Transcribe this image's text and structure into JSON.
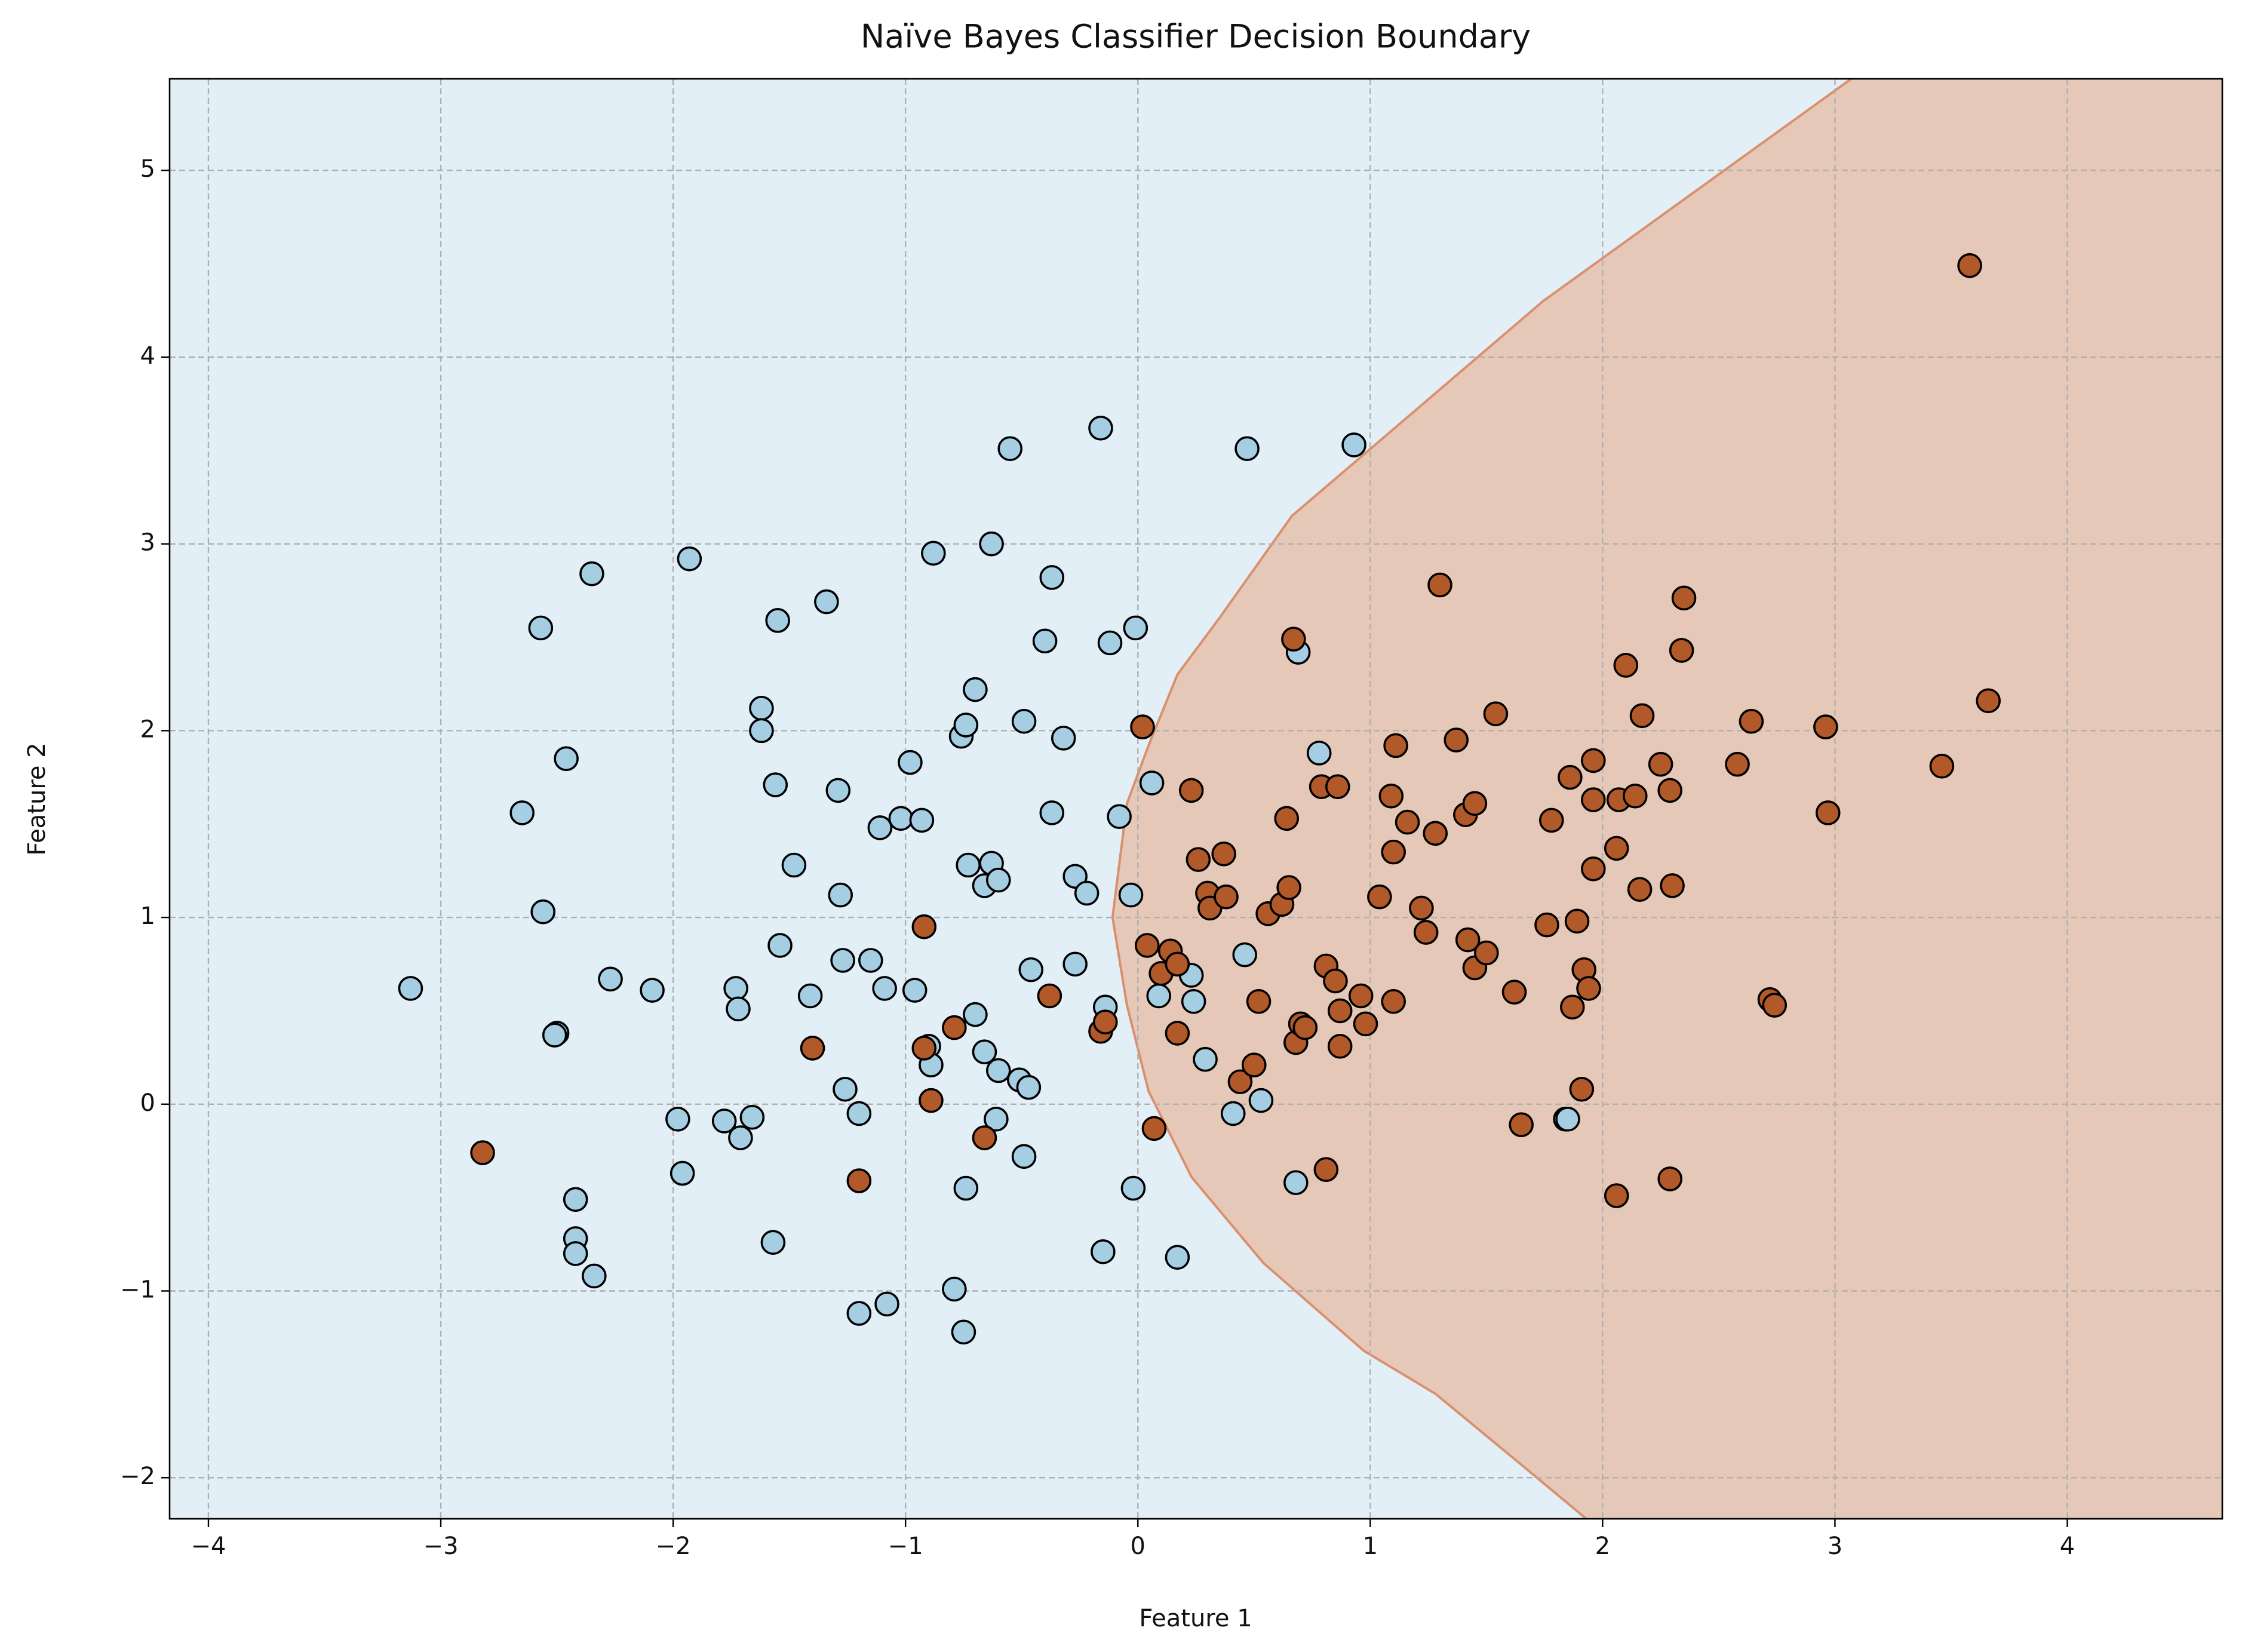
{
  "chart_data": {
    "type": "scatter",
    "title": "Naïve Bayes Classifier Decision Boundary",
    "x_label": "Feature 1",
    "y_label": "Feature 2",
    "xlim": [
      -4.167,
      4.667
    ],
    "ylim": [
      -2.22,
      5.49
    ],
    "xticks": [
      {
        "value": -4,
        "label": "−4"
      },
      {
        "value": -3,
        "label": "−3"
      },
      {
        "value": -2,
        "label": "−2"
      },
      {
        "value": -1,
        "label": "−1"
      },
      0,
      1,
      2,
      3,
      4
    ],
    "yticks": [
      {
        "value": -2,
        "label": "−2"
      },
      {
        "value": -1,
        "label": "−1"
      },
      0,
      1,
      2,
      3,
      4,
      5
    ],
    "grid": true,
    "background_color": "#e3eff6",
    "decision_boundary": {
      "color": "#d9906e",
      "fill": "#e6c8b9",
      "x": [
        3.07,
        1.744,
        1.096,
        0.663,
        0.355,
        0.17,
        0.046,
        -0.047,
        -0.109,
        -0.047,
        0.046,
        0.231,
        0.54,
        0.972,
        1.28,
        1.65,
        1.93
      ],
      "y": [
        5.49,
        4.3,
        3.61,
        3.15,
        2.61,
        2.3,
        1.92,
        1.61,
        1.0,
        0.53,
        0.07,
        -0.39,
        -0.85,
        -1.32,
        -1.55,
        -1.93,
        -2.22
      ]
    },
    "series": [
      {
        "color": "#a6cee3",
        "x": [
          -3.13,
          -2.27,
          -2.09,
          -2.65,
          -2.57,
          -2.35,
          -1.93,
          -2.46,
          -2.56,
          -2.5,
          -2.51,
          -2.42,
          -2.42,
          -2.42,
          -2.34,
          -1.98,
          -1.96,
          -1.78,
          -1.71,
          -1.66,
          -1.73,
          -1.72,
          -1.62,
          -1.62,
          -1.55,
          -1.56,
          -1.54,
          -1.57,
          -1.48,
          -1.41,
          -1.34,
          -1.29,
          -1.28,
          -1.27,
          -1.26,
          -1.2,
          -1.15,
          -1.2,
          -1.08,
          -1.11,
          -1.09,
          -1.02,
          -0.98,
          -0.93,
          -0.96,
          -0.88,
          -0.9,
          -0.89,
          -0.76,
          -0.74,
          -0.7,
          -0.73,
          -0.79,
          -0.75,
          -0.74,
          -0.7,
          -0.63,
          -0.63,
          -0.66,
          -0.6,
          -0.66,
          -0.61,
          -0.6,
          -0.55,
          -0.51,
          -0.49,
          -0.49,
          -0.46,
          -0.47,
          -0.4,
          -0.37,
          -0.37,
          -0.32,
          -0.27,
          -0.27,
          -0.22,
          -0.16,
          -0.12,
          -0.14,
          -0.15,
          -0.08,
          -0.01,
          -0.03,
          -0.02,
          0.06,
          0.09,
          0.17,
          0.23,
          0.24,
          0.29,
          0.46,
          0.41,
          0.53,
          0.47,
          0.93,
          0.69,
          0.78,
          0.68,
          1.84,
          1.85
        ],
        "values": [
          0.62,
          0.67,
          0.61,
          1.56,
          2.55,
          2.84,
          2.92,
          1.85,
          1.03,
          0.38,
          0.37,
          -0.51,
          -0.72,
          -0.8,
          -0.92,
          -0.08,
          -0.37,
          -0.09,
          -0.18,
          -0.07,
          0.62,
          0.51,
          2.12,
          2.0,
          2.59,
          1.71,
          0.85,
          -0.74,
          1.28,
          0.58,
          2.69,
          1.68,
          1.12,
          0.77,
          0.08,
          -0.05,
          0.77,
          -1.12,
          -1.07,
          1.48,
          0.62,
          1.53,
          1.83,
          1.52,
          0.61,
          2.95,
          0.31,
          0.21,
          1.97,
          2.03,
          2.22,
          1.28,
          -0.99,
          -1.22,
          -0.45,
          0.48,
          3.0,
          1.29,
          1.17,
          1.2,
          0.28,
          -0.08,
          0.18,
          3.51,
          0.13,
          2.05,
          -0.28,
          0.72,
          0.09,
          2.48,
          2.82,
          1.56,
          1.96,
          0.75,
          1.22,
          1.13,
          3.62,
          2.47,
          0.52,
          -0.79,
          1.54,
          2.55,
          1.12,
          -0.45,
          1.72,
          0.58,
          -0.82,
          0.69,
          0.55,
          0.24,
          0.8,
          -0.05,
          0.02,
          3.51,
          3.53,
          2.42,
          1.88,
          -0.42,
          -0.08,
          -0.08
        ]
      },
      {
        "color": "#b15928",
        "x": [
          -2.82,
          -1.4,
          -1.2,
          -0.92,
          -0.92,
          -0.89,
          -0.79,
          -0.66,
          -0.38,
          -0.16,
          -0.14,
          0.02,
          0.04,
          0.07,
          0.1,
          0.14,
          0.17,
          0.17,
          0.23,
          0.26,
          0.3,
          0.31,
          0.37,
          0.38,
          0.44,
          0.5,
          0.52,
          0.56,
          0.62,
          0.64,
          0.65,
          0.67,
          0.68,
          0.7,
          0.72,
          0.79,
          0.86,
          0.81,
          0.85,
          0.87,
          0.87,
          0.81,
          0.96,
          0.98,
          1.04,
          1.09,
          1.11,
          1.1,
          1.1,
          1.16,
          1.22,
          1.24,
          1.28,
          1.3,
          1.37,
          1.41,
          1.42,
          1.45,
          1.45,
          1.5,
          1.54,
          1.62,
          1.65,
          1.76,
          1.78,
          1.86,
          1.87,
          1.89,
          1.91,
          1.92,
          1.94,
          1.96,
          1.96,
          1.96,
          2.06,
          2.07,
          2.06,
          2.1,
          2.14,
          2.16,
          2.17,
          2.25,
          2.29,
          2.3,
          2.29,
          2.34,
          2.35,
          2.58,
          2.64,
          2.72,
          2.74,
          2.96,
          2.97,
          3.46,
          3.58,
          3.66
        ],
        "values": [
          -0.26,
          0.3,
          -0.41,
          0.95,
          0.3,
          0.02,
          0.41,
          -0.18,
          0.58,
          0.39,
          0.44,
          2.02,
          0.85,
          -0.13,
          0.7,
          0.82,
          0.75,
          0.38,
          1.68,
          1.31,
          1.13,
          1.05,
          1.34,
          1.11,
          0.12,
          0.21,
          0.55,
          1.02,
          1.07,
          1.53,
          1.16,
          2.49,
          0.33,
          0.43,
          0.41,
          1.7,
          1.7,
          0.74,
          0.66,
          0.5,
          0.31,
          -0.35,
          0.58,
          0.43,
          1.11,
          1.65,
          1.92,
          1.35,
          0.55,
          1.51,
          1.05,
          0.92,
          1.45,
          2.78,
          1.95,
          1.55,
          0.88,
          1.61,
          0.73,
          0.81,
          2.09,
          0.6,
          -0.11,
          0.96,
          1.52,
          1.75,
          0.52,
          0.98,
          0.08,
          0.72,
          0.62,
          1.63,
          1.84,
          1.26,
          1.37,
          1.63,
          -0.49,
          2.35,
          1.65,
          1.15,
          2.08,
          1.82,
          1.68,
          1.17,
          -0.4,
          2.43,
          2.71,
          1.82,
          2.05,
          0.56,
          0.53,
          2.02,
          1.56,
          1.81,
          4.49,
          2.16
        ]
      }
    ]
  }
}
